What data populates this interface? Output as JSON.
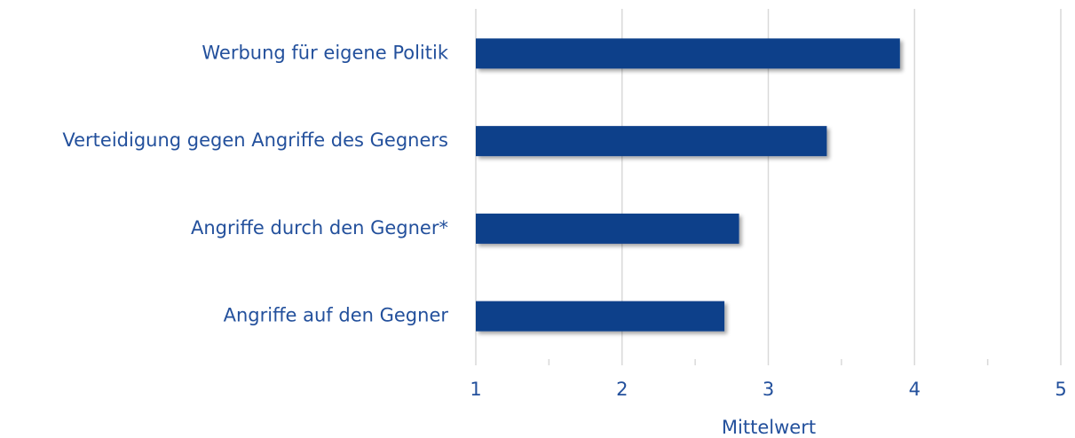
{
  "chart_data": {
    "type": "barh",
    "categories": [
      "Werbung für eigene Politik",
      "Verteidigung gegen Angriffe des Gegners",
      "Angriffe durch den Gegner*",
      "Angriffe auf den Gegner"
    ],
    "values": [
      3.9,
      3.4,
      2.8,
      2.7
    ],
    "color": "#0b3f8a",
    "xlabel": "Mittelwert",
    "xlim": [
      1,
      5
    ],
    "xticks": [
      1,
      2,
      3,
      4,
      5
    ],
    "xminorticks": [
      1.5,
      2.5,
      3.5,
      4.5
    ],
    "grid": true
  }
}
